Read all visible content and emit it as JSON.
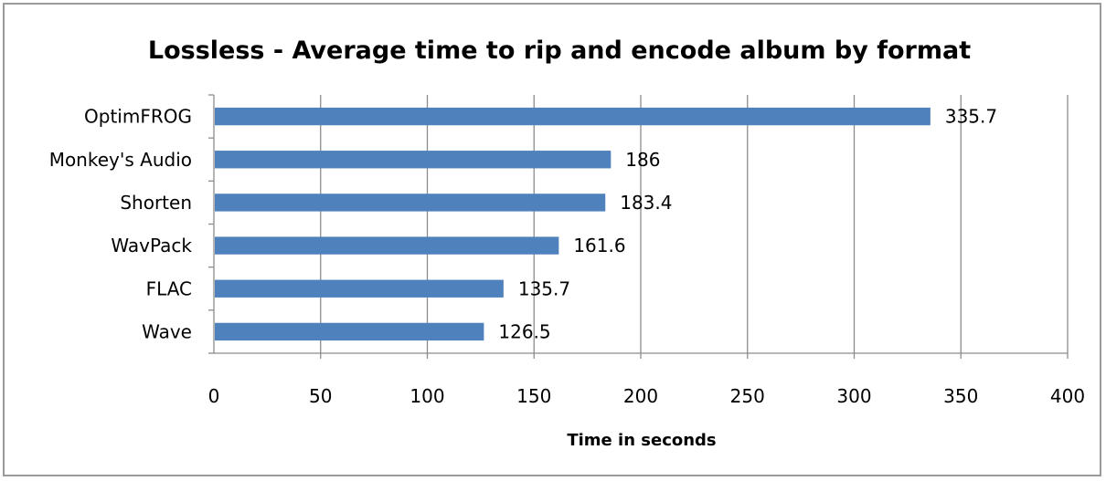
{
  "chart_data": {
    "type": "bar",
    "orientation": "horizontal",
    "title": "Lossless - Average time to rip and encode album by format",
    "xlabel": "Time in seconds",
    "ylabel": "",
    "categories": [
      "OptimFROG",
      "Monkey's Audio",
      "Shorten",
      "WavPack",
      "FLAC",
      "Wave"
    ],
    "values": [
      335.7,
      186,
      183.4,
      161.6,
      135.7,
      126.5
    ],
    "value_labels": [
      "335.7",
      "186",
      "183.4",
      "161.6",
      "135.7",
      "126.5"
    ],
    "xlim": [
      0,
      400
    ],
    "xticks": [
      0,
      50,
      100,
      150,
      200,
      250,
      300,
      350,
      400
    ],
    "grid": true,
    "legend": "none",
    "bar_color": "#4f81bd"
  }
}
